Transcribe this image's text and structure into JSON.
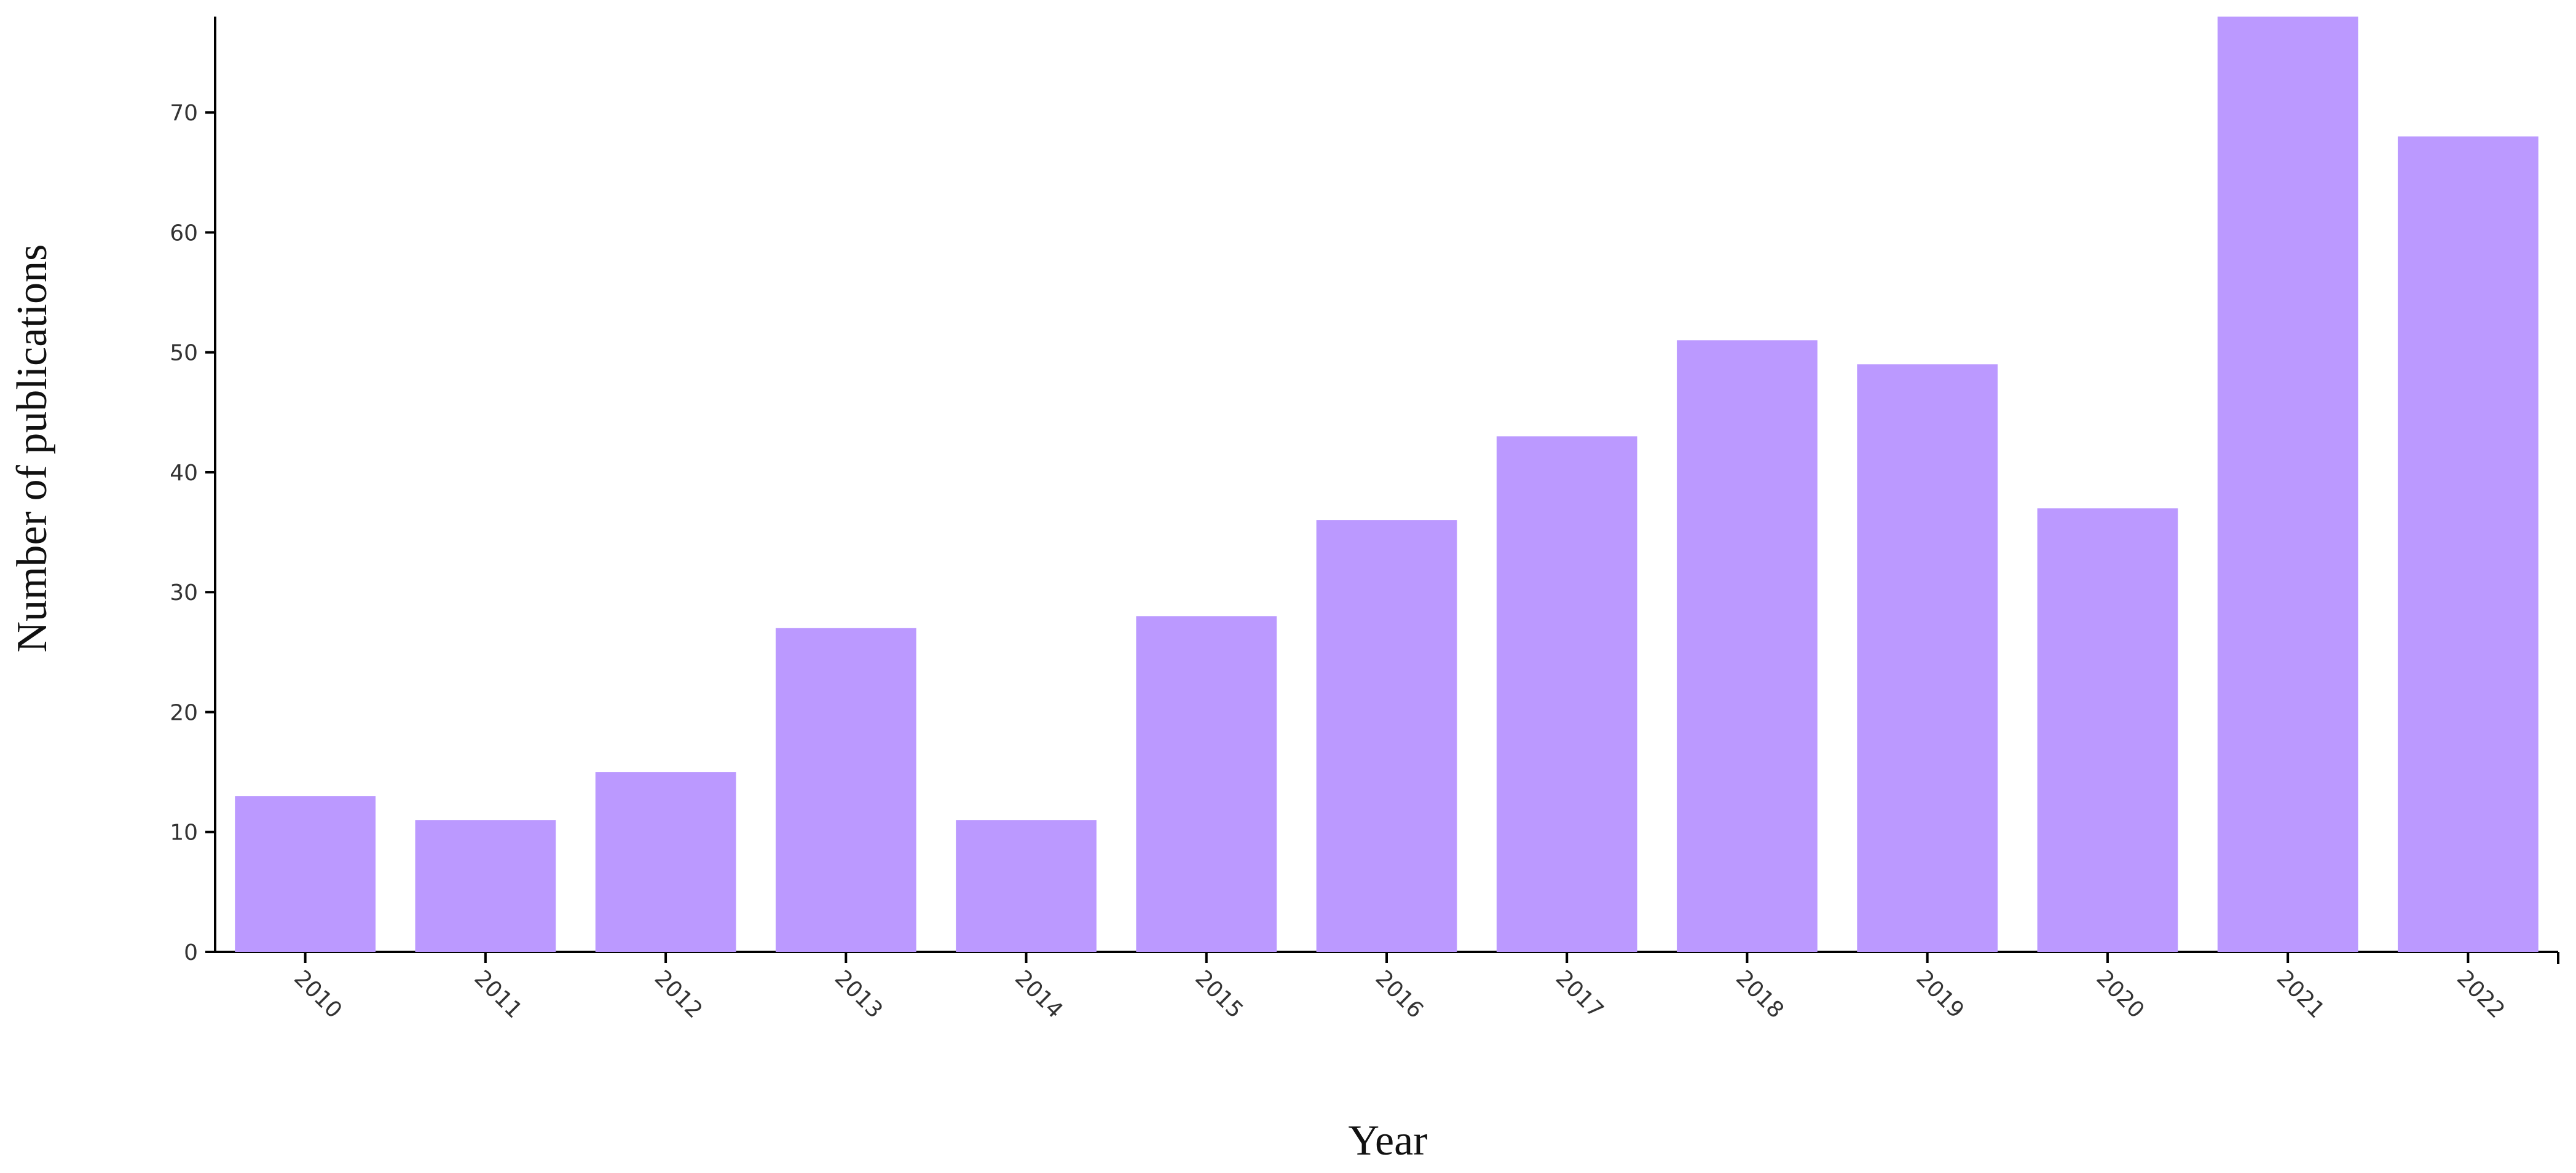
{
  "chart_data": {
    "type": "bar",
    "x_label": "Year",
    "y_label": "Number of publications",
    "categories": [
      "2010",
      "2011",
      "2012",
      "2013",
      "2014",
      "2015",
      "2016",
      "2017",
      "2018",
      "2019",
      "2020",
      "2021",
      "2022"
    ],
    "values": [
      13,
      11,
      15,
      27,
      11,
      28,
      36,
      43,
      51,
      49,
      37,
      78,
      68
    ],
    "color": "#bb99ff",
    "ylim": [
      0,
      78
    ],
    "yticks": [
      0,
      10,
      20,
      30,
      40,
      50,
      60,
      70
    ],
    "grid": false
  }
}
